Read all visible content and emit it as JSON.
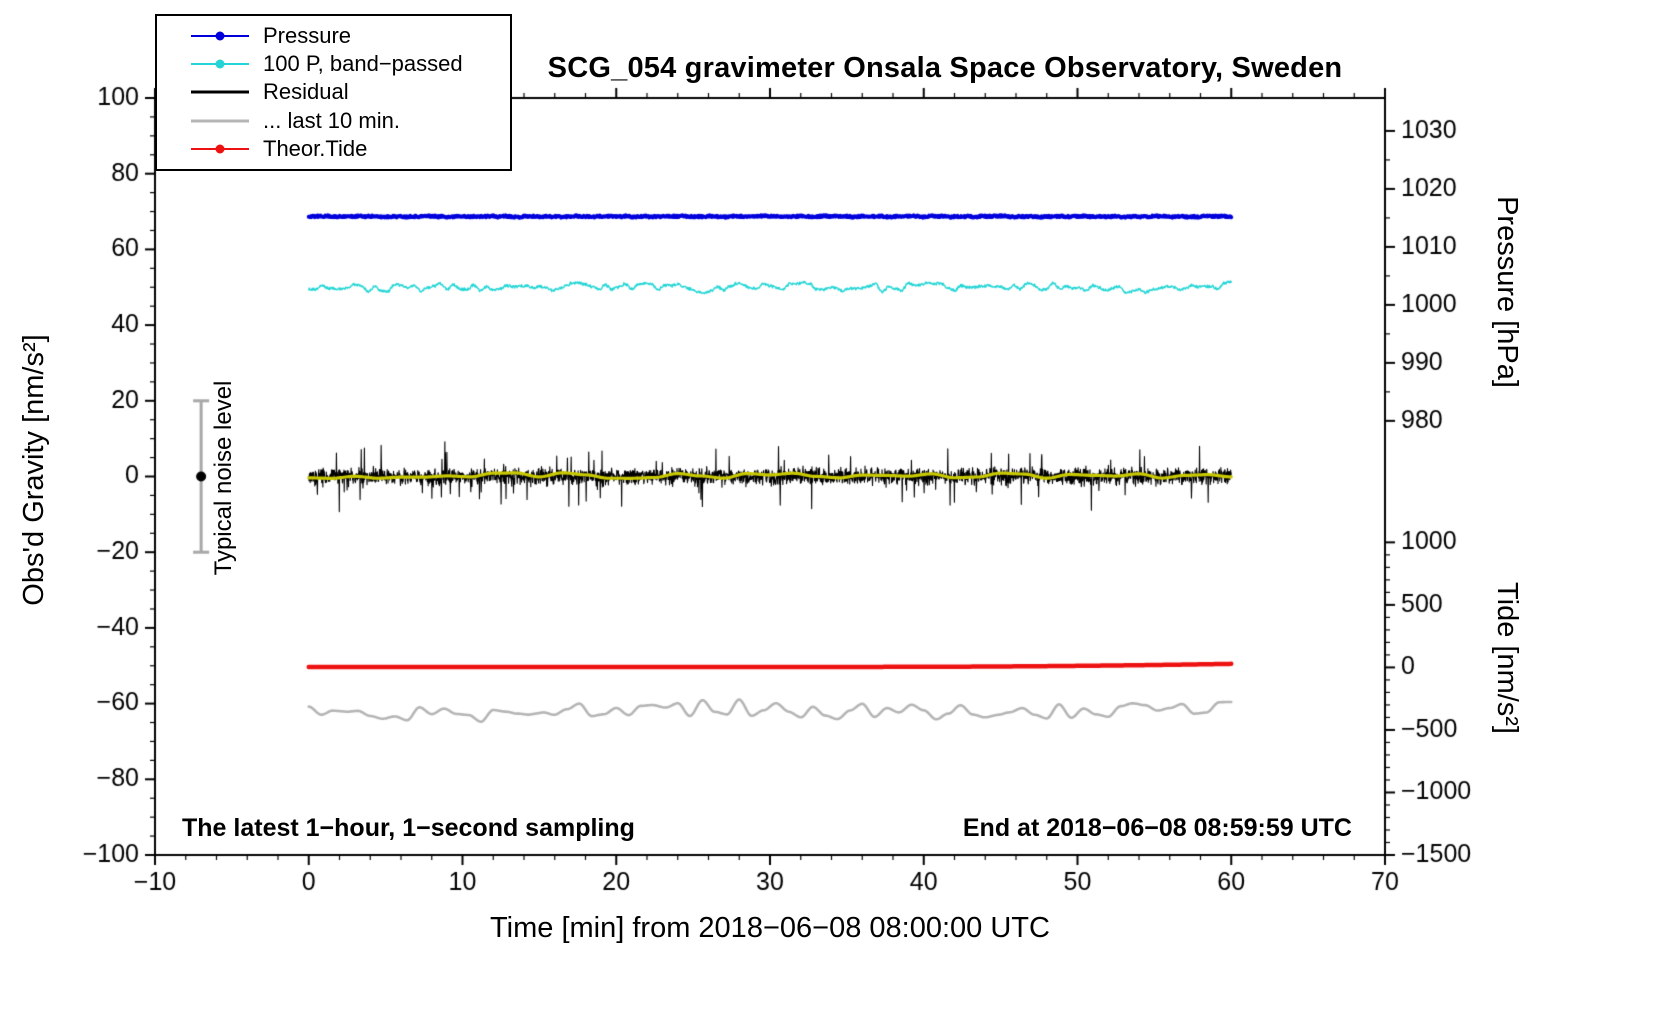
{
  "annotations": {
    "sampling": "The latest 1−hour, 1−second sampling",
    "end_time": "End at 2018−06−08 08:59:59 UTC",
    "noise": "Typical noise level"
  },
  "legend": [
    {
      "label": "Pressure",
      "color": "#0000dc",
      "marker": true,
      "lw": 2.5
    },
    {
      "label": "100 P, band−passed",
      "color": "#25d5d5",
      "marker": true,
      "lw": 2
    },
    {
      "label": "Residual",
      "color": "#000000",
      "marker": false,
      "lw": 3.5
    },
    {
      "label": "... last 10 min.",
      "color": "#b5b5b5",
      "marker": false,
      "lw": 3.5
    },
    {
      "label": "Theor.Tide",
      "color": "#ee1111",
      "marker": true,
      "lw": 2.5
    }
  ],
  "chart_data": {
    "type": "line",
    "title": "SCG_054 gravimeter Onsala Space Observatory, Sweden",
    "x_axis": {
      "label": "Time [min] from 2018−06−08 08:00:00 UTC",
      "range": [
        -10,
        70
      ],
      "major_ticks": [
        -10,
        0,
        10,
        20,
        30,
        40,
        50,
        60,
        70
      ],
      "minor_step": 2
    },
    "y_axis_left": {
      "label": "Obs'd Gravity [nm/s²]",
      "range": [
        -100,
        100
      ],
      "major_ticks": [
        100,
        80,
        60,
        40,
        20,
        0,
        -20,
        -40,
        -60,
        -80,
        -100
      ],
      "minor_step": 5
    },
    "y_axis_pressure": {
      "label": "Pressure [hPa]",
      "major_ticks": [
        1030,
        1020,
        1010,
        1000,
        990,
        980
      ],
      "minor_step": 5,
      "gravity_refs": [
        [
          980,
          14.7
        ],
        [
          1030,
          91.3
        ]
      ]
    },
    "y_axis_tide": {
      "label": "Tide [nm/s²]",
      "major_ticks": [
        1000,
        500,
        0,
        -500,
        -1000,
        -1500
      ],
      "minor_step": 100,
      "gravity_refs": [
        [
          -1500,
          -100
        ],
        [
          1000,
          -17.4
        ]
      ]
    },
    "noise_bar": {
      "x": -7,
      "center": 0,
      "half_range": 20,
      "color": "#a8a8a8",
      "dot_color": "#000000"
    },
    "series": [
      {
        "name": "100 P, band−passed",
        "color": "#25d5d5",
        "lw": 1.4,
        "seed": 23,
        "x_range": [
          0,
          60
        ],
        "points": 1600,
        "baseline": 50,
        "components": [
          {
            "type": "lattice",
            "cycles": 140,
            "amp": 1.0
          },
          {
            "type": "lattice",
            "cycles": 35,
            "amp": 0.6
          },
          {
            "type": "white",
            "amp": 0.35
          }
        ]
      },
      {
        "name": "Pressure",
        "color": "#0000dc",
        "lw": 4,
        "seed": 11,
        "x_range": [
          0,
          60
        ],
        "points": 1500,
        "baseline": 68.7,
        "approx_pressure_hPa": 1015,
        "components": [
          {
            "type": "lattice",
            "cycles": 200,
            "amp": 0.15
          },
          {
            "type": "white",
            "amp": 0.2
          }
        ]
      },
      {
        "name": "Residual",
        "color": "#000000",
        "lw": 1.1,
        "seed": 37,
        "x_range": [
          0,
          60
        ],
        "points": 3200,
        "baseline": 0,
        "components": [
          {
            "type": "gauss",
            "amp": 2.1
          },
          {
            "type": "spike",
            "prob": 0.04,
            "amp": 8
          }
        ]
      },
      {
        "name": "Residual smoothed",
        "color": "#c9c900",
        "lw": 3.2,
        "seed": 51,
        "x_range": [
          0,
          60
        ],
        "points": 500,
        "baseline": 0.2,
        "components": [
          {
            "type": "lattice",
            "cycles": 40,
            "amp": 0.8
          }
        ]
      },
      {
        "name": "Theor.Tide",
        "color": "#ee1111",
        "lw": 4.5,
        "seed": 67,
        "x_range": [
          0,
          60
        ],
        "points": 400,
        "baseline": -50.3,
        "approx_tide_nms2": 0,
        "components": [
          {
            "type": "trend_late",
            "start": 0.6,
            "amp": 0.8
          }
        ]
      },
      {
        "name": "... last 10 min.",
        "color": "#b5b5b5",
        "lw": 2.6,
        "seed": 83,
        "x_range": [
          0,
          60
        ],
        "points": 900,
        "baseline": -62,
        "components": [
          {
            "type": "lattice",
            "cycles": 75,
            "amp": 2.2
          },
          {
            "type": "lattice",
            "cycles": 18,
            "amp": 1.1
          }
        ]
      }
    ]
  }
}
